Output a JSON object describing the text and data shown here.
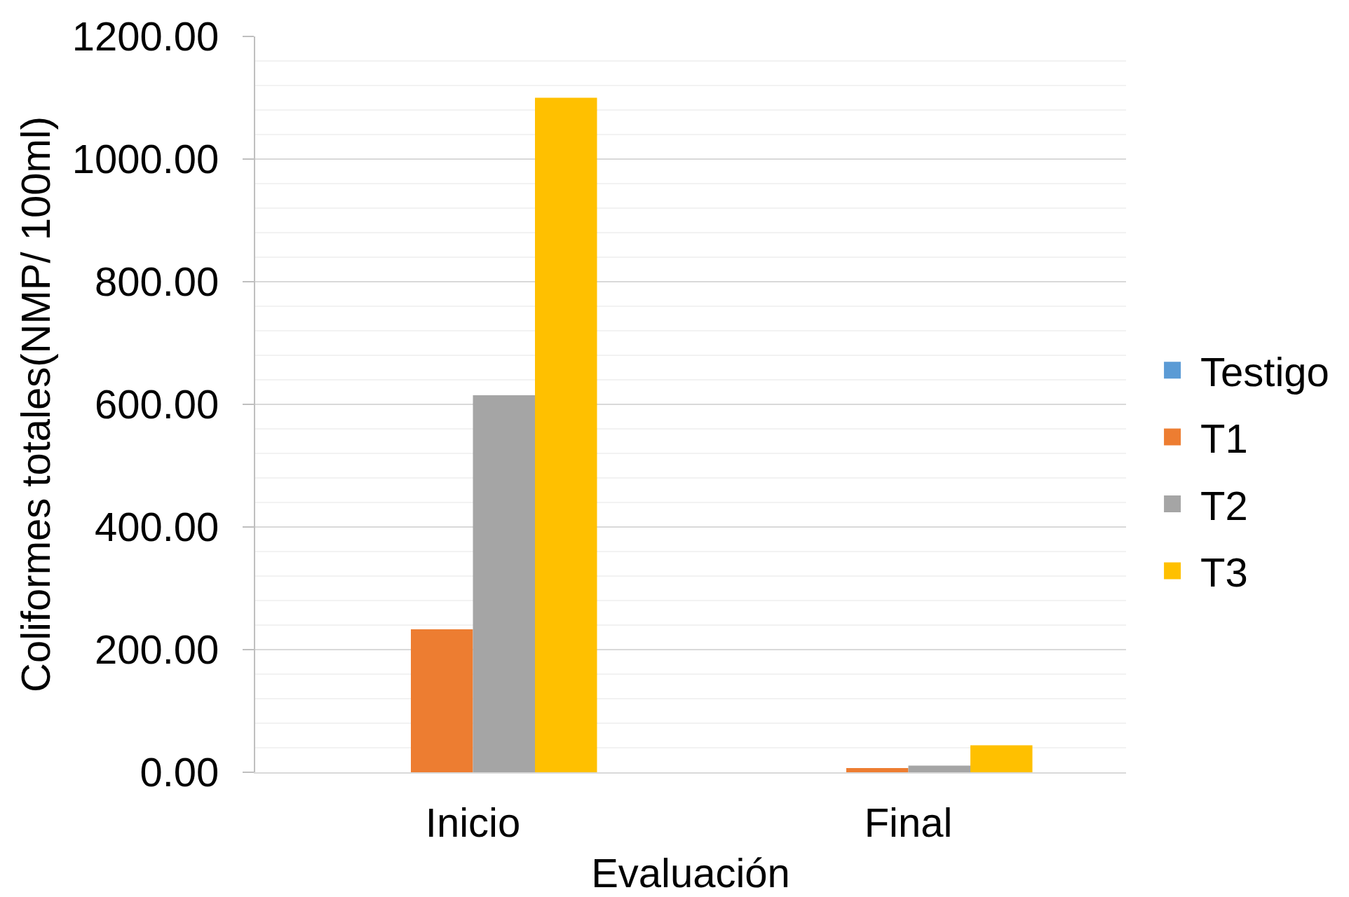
{
  "chart_data": {
    "type": "bar",
    "xlabel": "Evaluación",
    "ylabel": "Coliformes totales(NMP/ 100ml)",
    "categories": [
      "Inicio",
      "Final"
    ],
    "series": [
      {
        "name": "Testigo",
        "color": "#5b9bd5",
        "values": [
          0,
          0
        ]
      },
      {
        "name": "T1",
        "color": "#ed7d31",
        "values": [
          233,
          7
        ]
      },
      {
        "name": "T2",
        "color": "#a5a5a5",
        "values": [
          615,
          11
        ]
      },
      {
        "name": "T3",
        "color": "#ffc000",
        "values": [
          1100,
          44
        ]
      }
    ],
    "ylim": [
      0,
      1200
    ],
    "yticks": [
      {
        "value": 0,
        "label": "0.00"
      },
      {
        "value": 200,
        "label": "200.00"
      },
      {
        "value": 400,
        "label": "400.00"
      },
      {
        "value": 600,
        "label": "600.00"
      },
      {
        "value": 800,
        "label": "800.00"
      },
      {
        "value": 1000,
        "label": "1000.00"
      },
      {
        "value": 1200,
        "label": "1200.00"
      }
    ],
    "grid": "y",
    "legend": "right"
  }
}
